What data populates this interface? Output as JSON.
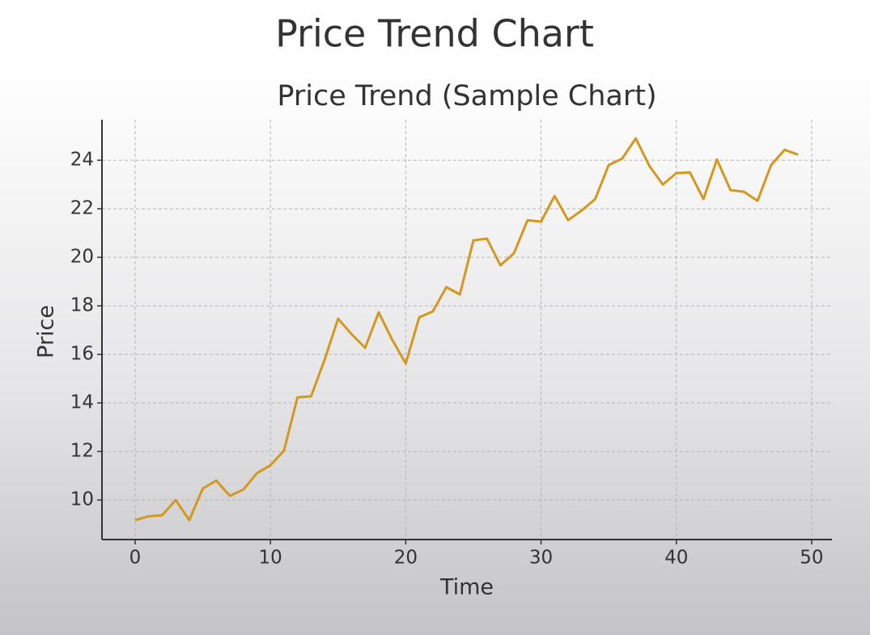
{
  "page_title": "Price Trend Chart",
  "chart_data": {
    "type": "line",
    "title": "Price Trend (Sample Chart)",
    "x_label": "Time",
    "y_label": "Price",
    "x": [
      0,
      1,
      2,
      3,
      4,
      5,
      6,
      7,
      8,
      9,
      10,
      11,
      12,
      13,
      14,
      15,
      16,
      17,
      18,
      19,
      20,
      21,
      22,
      23,
      24,
      25,
      26,
      27,
      28,
      29,
      30,
      31,
      32,
      33,
      34,
      35,
      36,
      37,
      38,
      39,
      40,
      41,
      42,
      43,
      44,
      45,
      46,
      47,
      48,
      49
    ],
    "series": [
      {
        "name": "Price",
        "color": "#d4981f",
        "values": [
          9.17,
          9.33,
          9.37,
          10.0,
          9.17,
          10.47,
          10.8,
          10.17,
          10.43,
          11.1,
          11.43,
          12.03,
          14.23,
          14.27,
          15.77,
          17.47,
          16.83,
          16.27,
          17.73,
          16.6,
          15.63,
          17.53,
          17.77,
          18.77,
          18.47,
          20.7,
          20.77,
          19.67,
          20.17,
          21.53,
          21.47,
          22.53,
          21.53,
          21.93,
          22.4,
          23.8,
          24.07,
          24.9,
          23.77,
          23.0,
          23.47,
          23.5,
          22.4,
          24.03,
          22.77,
          22.7,
          22.33,
          23.8,
          24.43,
          24.23
        ]
      }
    ],
    "xlim": [
      -2.45,
      51.5
    ],
    "xticks": [
      0,
      10,
      20,
      30,
      40,
      50
    ],
    "ylim": [
      8.37,
      25.67
    ],
    "yticks": [
      10,
      12,
      14,
      16,
      18,
      20,
      22,
      24
    ],
    "grid": true
  }
}
